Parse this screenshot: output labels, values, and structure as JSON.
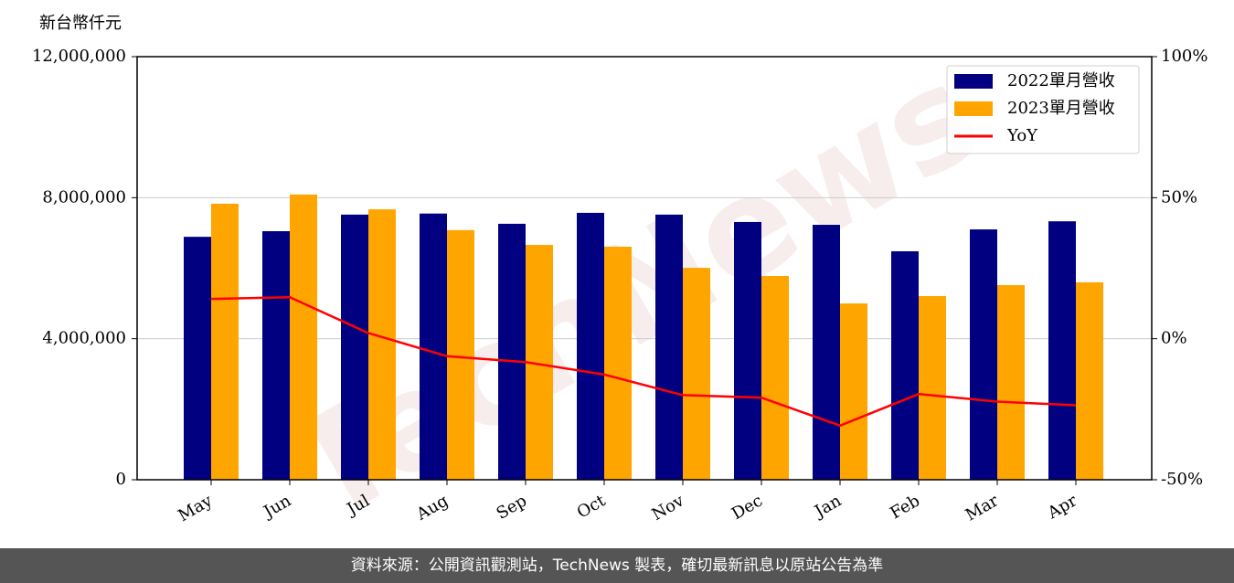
{
  "chart_data": {
    "type": "bar",
    "y_axis_label": "新台幣仟元",
    "watermark": "TechNews",
    "categories": [
      "May",
      "Jun",
      "Jul",
      "Aug",
      "Sep",
      "Oct",
      "Nov",
      "Dec",
      "Jan",
      "Feb",
      "Mar",
      "Apr"
    ],
    "series": [
      {
        "name": "2022單月營收",
        "color": "#000080",
        "values": [
          6890000,
          7050000,
          7520000,
          7550000,
          7260000,
          7570000,
          7520000,
          7310000,
          7230000,
          6480000,
          7100000,
          7330000
        ]
      },
      {
        "name": "2023單月營收",
        "color": "#ffa500",
        "values": [
          7830000,
          8090000,
          7670000,
          7080000,
          6660000,
          6610000,
          6010000,
          5780000,
          5000000,
          5210000,
          5520000,
          5600000
        ]
      },
      {
        "name": "YoY",
        "type": "line",
        "axis": "y2",
        "color": "#ff0000",
        "values": [
          14.1,
          14.7,
          2.0,
          -6.2,
          -8.3,
          -12.7,
          -20.0,
          -20.9,
          -30.8,
          -19.6,
          -22.3,
          -23.6
        ]
      }
    ],
    "ylim": [
      0,
      12000000
    ],
    "yticks": [
      0,
      {
        "value": 4000000,
        "label": "4,000,000"
      },
      {
        "value": 8000000,
        "label": "8,000,000"
      },
      {
        "value": 12000000,
        "label": "12,000,000"
      }
    ],
    "y2lim": [
      -50,
      100
    ],
    "y2ticks": [
      {
        "value": -50,
        "label": "-50%"
      },
      {
        "value": 0,
        "label": "0%"
      },
      {
        "value": 50,
        "label": "50%"
      },
      {
        "value": 100,
        "label": "100%"
      }
    ],
    "grid": true,
    "legend": "upper right"
  },
  "footer": "資料來源：公開資訊觀測站，TechNews 製表，確切最新訊息以原站公告為準"
}
